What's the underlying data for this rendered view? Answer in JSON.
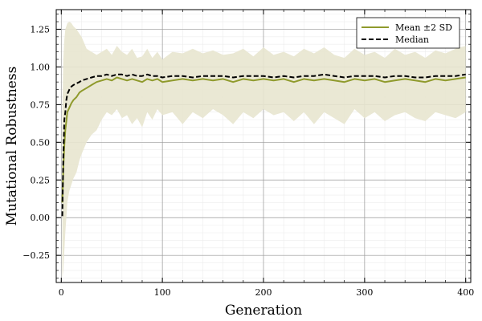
{
  "chart_data": {
    "type": "line",
    "xlabel": "Generation",
    "ylabel": "Mutational Robustness",
    "xlim": [
      -5,
      405
    ],
    "ylim": [
      -0.43,
      1.38
    ],
    "xticks": [
      0,
      100,
      200,
      300,
      400
    ],
    "yticks": [
      -0.25,
      0.0,
      0.25,
      0.5,
      0.75,
      1.0,
      1.25
    ],
    "xtick_labels": [
      "0",
      "100",
      "200",
      "300",
      "400"
    ],
    "ytick_labels": [
      "−0.25",
      "0.00",
      "0.25",
      "0.50",
      "0.75",
      "1.00",
      "1.25"
    ],
    "grid": true,
    "minor_grid": true,
    "legend_position": "top-right",
    "colors": {
      "mean": "#8f9a2c",
      "band": "#e8e6cf",
      "median": "#000000"
    },
    "series": [
      {
        "name": "Mean ±2 SD",
        "style": "solid-with-band",
        "x": [
          1,
          2,
          3,
          4,
          5,
          6,
          8,
          10,
          12,
          15,
          18,
          20,
          25,
          30,
          35,
          40,
          45,
          50,
          55,
          60,
          65,
          70,
          75,
          80,
          85,
          90,
          95,
          100,
          110,
          120,
          130,
          140,
          150,
          160,
          170,
          180,
          190,
          200,
          210,
          220,
          230,
          240,
          250,
          260,
          270,
          280,
          290,
          300,
          310,
          320,
          330,
          340,
          350,
          360,
          370,
          380,
          390,
          400
        ],
        "values": [
          0.1,
          0.33,
          0.48,
          0.58,
          0.64,
          0.7,
          0.73,
          0.76,
          0.78,
          0.8,
          0.83,
          0.84,
          0.86,
          0.88,
          0.9,
          0.91,
          0.92,
          0.91,
          0.93,
          0.92,
          0.91,
          0.92,
          0.91,
          0.9,
          0.92,
          0.91,
          0.92,
          0.9,
          0.91,
          0.92,
          0.91,
          0.92,
          0.91,
          0.92,
          0.9,
          0.92,
          0.91,
          0.92,
          0.91,
          0.92,
          0.9,
          0.92,
          0.91,
          0.92,
          0.91,
          0.9,
          0.92,
          0.91,
          0.92,
          0.9,
          0.91,
          0.92,
          0.91,
          0.9,
          0.92,
          0.91,
          0.92,
          0.93
        ],
        "upper": [
          0.7,
          1.05,
          1.18,
          1.25,
          1.27,
          1.29,
          1.3,
          1.29,
          1.27,
          1.25,
          1.22,
          1.2,
          1.12,
          1.1,
          1.08,
          1.1,
          1.12,
          1.08,
          1.14,
          1.1,
          1.08,
          1.12,
          1.06,
          1.07,
          1.12,
          1.06,
          1.1,
          1.05,
          1.1,
          1.09,
          1.12,
          1.09,
          1.11,
          1.08,
          1.09,
          1.12,
          1.07,
          1.13,
          1.08,
          1.1,
          1.07,
          1.12,
          1.09,
          1.13,
          1.08,
          1.06,
          1.12,
          1.08,
          1.1,
          1.06,
          1.12,
          1.08,
          1.1,
          1.06,
          1.11,
          1.09,
          1.12,
          1.14
        ],
        "lower": [
          -0.4,
          -0.35,
          -0.22,
          -0.1,
          0.0,
          0.1,
          0.18,
          0.22,
          0.26,
          0.3,
          0.38,
          0.42,
          0.5,
          0.55,
          0.58,
          0.65,
          0.7,
          0.68,
          0.72,
          0.66,
          0.68,
          0.62,
          0.66,
          0.6,
          0.7,
          0.65,
          0.72,
          0.68,
          0.7,
          0.62,
          0.7,
          0.66,
          0.72,
          0.68,
          0.62,
          0.7,
          0.66,
          0.72,
          0.68,
          0.7,
          0.64,
          0.7,
          0.62,
          0.7,
          0.66,
          0.62,
          0.72,
          0.66,
          0.7,
          0.64,
          0.68,
          0.7,
          0.66,
          0.64,
          0.7,
          0.68,
          0.66,
          0.7
        ]
      },
      {
        "name": "Median",
        "style": "dashed",
        "x": [
          1,
          2,
          3,
          4,
          5,
          6,
          8,
          10,
          12,
          15,
          18,
          20,
          25,
          30,
          35,
          40,
          45,
          50,
          55,
          60,
          65,
          70,
          75,
          80,
          85,
          90,
          95,
          100,
          110,
          120,
          130,
          140,
          150,
          160,
          170,
          180,
          190,
          200,
          210,
          220,
          230,
          240,
          250,
          260,
          270,
          280,
          290,
          300,
          310,
          320,
          330,
          340,
          350,
          360,
          370,
          380,
          390,
          400
        ],
        "values": [
          0.01,
          0.4,
          0.65,
          0.7,
          0.78,
          0.82,
          0.85,
          0.87,
          0.88,
          0.89,
          0.9,
          0.91,
          0.92,
          0.93,
          0.94,
          0.94,
          0.95,
          0.94,
          0.95,
          0.95,
          0.94,
          0.95,
          0.94,
          0.94,
          0.95,
          0.94,
          0.94,
          0.93,
          0.94,
          0.94,
          0.93,
          0.94,
          0.94,
          0.94,
          0.93,
          0.94,
          0.94,
          0.94,
          0.93,
          0.94,
          0.93,
          0.94,
          0.94,
          0.95,
          0.94,
          0.93,
          0.94,
          0.94,
          0.94,
          0.93,
          0.94,
          0.94,
          0.93,
          0.93,
          0.94,
          0.94,
          0.94,
          0.95
        ]
      }
    ]
  }
}
